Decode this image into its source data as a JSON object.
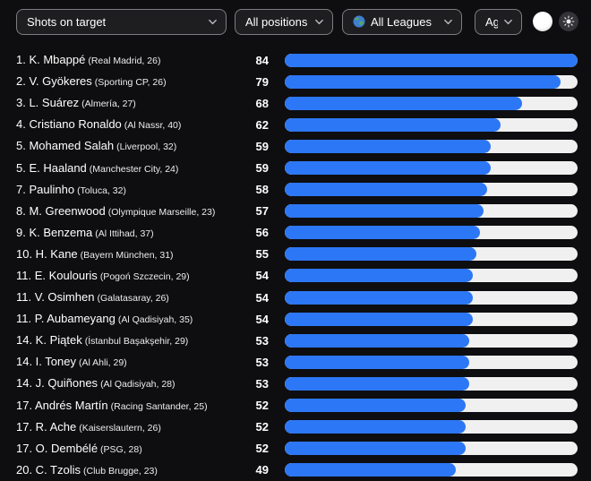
{
  "toolbar": {
    "stat_dropdown": {
      "value": "Shots on target"
    },
    "positions_dropdown": {
      "value": "All positions"
    },
    "leagues_dropdown": {
      "value": "All Leagues"
    },
    "age_dropdown": {
      "value": "Age"
    }
  },
  "icons": {
    "chevron_down": "chevron-down-icon",
    "globe": "globe-icon",
    "light_circle": "light-circle-icon",
    "sun": "sun-icon"
  },
  "colors": {
    "background": "#0e0e10",
    "bar_fill": "#2c77f5",
    "bar_track": "#f0f0f0",
    "text": "#ffffff"
  },
  "list": {
    "max_value": 84,
    "players": [
      {
        "rank": 1,
        "name": "K. Mbappé",
        "club": "Real Madrid",
        "age": 26,
        "value": 84
      },
      {
        "rank": 2,
        "name": "V. Gyökeres",
        "club": "Sporting CP",
        "age": 26,
        "value": 79
      },
      {
        "rank": 3,
        "name": "L. Suárez",
        "club": "Almería",
        "age": 27,
        "value": 68
      },
      {
        "rank": 4,
        "name": "Cristiano Ronaldo",
        "club": "Al Nassr",
        "age": 40,
        "value": 62
      },
      {
        "rank": 5,
        "name": "Mohamed Salah",
        "club": "Liverpool",
        "age": 32,
        "value": 59
      },
      {
        "rank": 5,
        "name": "E. Haaland",
        "club": "Manchester City",
        "age": 24,
        "value": 59
      },
      {
        "rank": 7,
        "name": "Paulinho",
        "club": "Toluca",
        "age": 32,
        "value": 58
      },
      {
        "rank": 8,
        "name": "M. Greenwood",
        "club": "Olympique Marseille",
        "age": 23,
        "value": 57
      },
      {
        "rank": 9,
        "name": "K. Benzema",
        "club": "Al Ittihad",
        "age": 37,
        "value": 56
      },
      {
        "rank": 10,
        "name": "H. Kane",
        "club": "Bayern München",
        "age": 31,
        "value": 55
      },
      {
        "rank": 11,
        "name": "E. Koulouris",
        "club": "Pogoń Szczecin",
        "age": 29,
        "value": 54
      },
      {
        "rank": 11,
        "name": "V. Osimhen",
        "club": "Galatasaray",
        "age": 26,
        "value": 54
      },
      {
        "rank": 11,
        "name": "P. Aubameyang",
        "club": "Al Qadisiyah",
        "age": 35,
        "value": 54
      },
      {
        "rank": 14,
        "name": "K. Piątek",
        "club": "İstanbul Başakşehir",
        "age": 29,
        "value": 53
      },
      {
        "rank": 14,
        "name": "I. Toney",
        "club": "Al Ahli",
        "age": 29,
        "value": 53
      },
      {
        "rank": 14,
        "name": "J. Quiñones",
        "club": "Al Qadisiyah",
        "age": 28,
        "value": 53
      },
      {
        "rank": 17,
        "name": "Andrés Martín",
        "club": "Racing Santander",
        "age": 25,
        "value": 52
      },
      {
        "rank": 17,
        "name": "R. Ache",
        "club": "Kaiserslautern",
        "age": 26,
        "value": 52
      },
      {
        "rank": 17,
        "name": "O. Dembélé",
        "club": "PSG",
        "age": 28,
        "value": 52
      },
      {
        "rank": 20,
        "name": "C. Tzolis",
        "club": "Club Brugge",
        "age": 23,
        "value": 49
      }
    ]
  },
  "chart_data": {
    "type": "bar",
    "orientation": "horizontal",
    "title": "Shots on target",
    "categories": [
      "K. Mbappé",
      "V. Gyökeres",
      "L. Suárez",
      "Cristiano Ronaldo",
      "Mohamed Salah",
      "E. Haaland",
      "Paulinho",
      "M. Greenwood",
      "K. Benzema",
      "H. Kane",
      "E. Koulouris",
      "V. Osimhen",
      "P. Aubameyang",
      "K. Piątek",
      "I. Toney",
      "J. Quiñones",
      "Andrés Martín",
      "R. Ache",
      "O. Dembélé",
      "C. Tzolis"
    ],
    "values": [
      84,
      79,
      68,
      62,
      59,
      59,
      58,
      57,
      56,
      55,
      54,
      54,
      54,
      53,
      53,
      53,
      52,
      52,
      52,
      49
    ],
    "xlabel": "",
    "ylabel": "",
    "xlim": [
      0,
      84
    ],
    "grid": false,
    "legend": "none"
  }
}
